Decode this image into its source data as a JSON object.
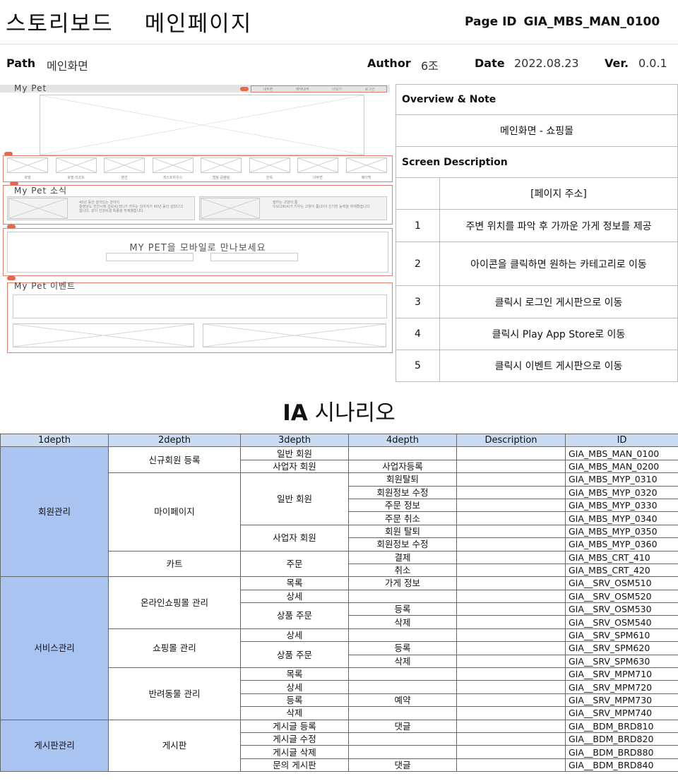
{
  "header": {
    "title_left": "스토리보드",
    "title_right": "메인페이지",
    "page_id_label": "Page ID",
    "page_id_value": "GIA_MBS_MAN_0100"
  },
  "meta": {
    "path_label": "Path",
    "path_value": "메인화면",
    "author_label": "Author",
    "author_value": "6조",
    "date_label": "Date",
    "date_value": "2022.08.23",
    "ver_label": "Ver.",
    "ver_value": "0.0.1"
  },
  "wireframe": {
    "brand": "My Pet",
    "nav": [
      "내주변",
      "예약내역",
      "더보기",
      "로그인"
    ],
    "categories": [
      "호텔",
      "호텔·리조트",
      "펜션",
      "게스트하우스",
      "캠핑·글램핑",
      "한옥",
      "내주변",
      "페이백"
    ],
    "news_title": "My Pet 소식",
    "news_items": [
      {
        "title": "40년 동안 살아있는 강아지",
        "body": "충청남도 천안시에 김모씨(35)가 키우는 강아지가 40년 동안 살았다고 합니다. 같이 건강비결 특종을 취재했습니다."
      },
      {
        "title": "말하는 고양이 톰",
        "body": "이모(26)씨가 키우는 고양이 톰(2)이 신기한 능력을 취재했습니다."
      }
    ],
    "mobile_banner": "MY PET을 모바일로 만나보세요",
    "event_title": "My Pet 이벤트",
    "markers": [
      "1",
      "2",
      "3",
      "4",
      "5"
    ]
  },
  "overview": {
    "overview_header": "Overview & Note",
    "overview_text": "메인화면 - 쇼핑몰",
    "screen_header": "Screen Description",
    "address_row": "[페이지 주소]",
    "items": [
      {
        "num": "1",
        "text": "주변 위치를 파악 후 가까운 가게 정보를 제공"
      },
      {
        "num": "2",
        "text": "아이콘을 클릭하면 원하는 카테고리로 이동"
      },
      {
        "num": "3",
        "text": "클릭시 로그인 게시판으로 이동"
      },
      {
        "num": "4",
        "text": "클릭시 Play App Store로 이동"
      },
      {
        "num": "5",
        "text": "클릭시 이벤트 게시판으로 이동"
      }
    ]
  },
  "ia": {
    "title_bold": "IA",
    "title_rest": "시나리오",
    "headers": [
      "1depth",
      "2depth",
      "3depth",
      "4depth",
      "Description",
      "ID"
    ],
    "groups": [
      "회원관리",
      "서비스관리",
      "게시판관리"
    ],
    "sub": [
      "신규회원 등록",
      "마이페이지",
      "카트",
      "온라인쇼핑몰 관리",
      "쇼핑몰 관리",
      "반려동물 관리",
      "게시판"
    ],
    "d3": [
      "일반 회원",
      "사업자 회원",
      "일반 회원",
      "사업자 회원",
      "주문",
      "목록",
      "상세",
      "상품 주문",
      "상세",
      "상품 주문",
      "목록",
      "상세",
      "등록",
      "삭제",
      "게시글 등록",
      "게시글 수정",
      "게시글 삭제",
      "문의 게시판"
    ],
    "d4": [
      "사업자등록",
      "회원탈퇴",
      "회원정보 수정",
      "주문 정보",
      "주문 취소",
      "회원 탈퇴",
      "회원정보 수정",
      "결제",
      "취소",
      "가게 정보",
      "등록",
      "삭제",
      "등록",
      "삭제",
      "예약",
      "댓글",
      "댓글"
    ],
    "ids": [
      "GIA_MBS_MAN_0100",
      "GIA_MBS_MAN_0200",
      "GIA_MBS_MYP_0310",
      "GIA_MBS_MYP_0320",
      "GIA_MBS_MYP_0330",
      "GIA_MBS_MYP_0340",
      "GIA_MBS_MYP_0350",
      "GIA_MBS_MYP_0360",
      "GIA_MBS_CRT_410",
      "GIA_MBS_CRT_420",
      "GIA__SRV_OSM510",
      "GIA__SRV_OSM520",
      "GIA__SRV_OSM530",
      "GIA__SRV_OSM540",
      "GIA__SRV_SPM610",
      "GIA__SRV_SPM620",
      "GIA__SRV_SPM630",
      "GIA__SRV_MPM710",
      "GIA__SRV_MPM720",
      "GIA__SRV_MPM730",
      "GIA__SRV_MPM740",
      "GIA__BDM_BRD810",
      "GIA__BDM_BRD820",
      "GIA__BDM_BRD880",
      "GIA__BDM_BRD840"
    ]
  }
}
